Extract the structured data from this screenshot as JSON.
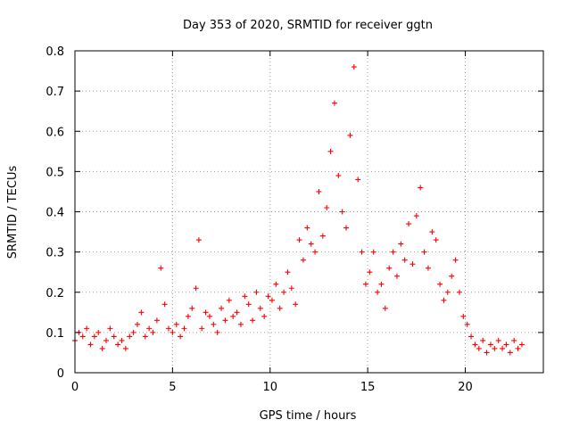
{
  "chart_data": {
    "type": "scatter",
    "title": "Day 353 of 2020, SRMTID for receiver ggtn",
    "xlabel": "GPS time / hours",
    "ylabel": "SRMTID / TECUs",
    "xlim": [
      0,
      24
    ],
    "ylim": [
      0,
      0.8
    ],
    "xticks": [
      0,
      5,
      10,
      15,
      20
    ],
    "xtick_labels": [
      "0",
      "5",
      "10",
      "15",
      "20"
    ],
    "yticks": [
      0,
      0.1,
      0.2,
      0.3,
      0.4,
      0.5,
      0.6,
      0.7,
      0.8
    ],
    "ytick_labels": [
      "0",
      "0.1",
      "0.2",
      "0.3",
      "0.4",
      "0.5",
      "0.6",
      "0.7",
      "0.8"
    ],
    "grid": true,
    "marker": "plus",
    "series": [
      {
        "name": "SRMTID",
        "color": "#ff0000",
        "x": [
          0.0,
          0.2,
          0.4,
          0.6,
          0.8,
          1.0,
          1.2,
          1.4,
          1.6,
          1.8,
          2.0,
          2.2,
          2.4,
          2.6,
          2.8,
          3.0,
          3.2,
          3.4,
          3.6,
          3.8,
          4.0,
          4.2,
          4.4,
          4.6,
          4.8,
          5.0,
          5.2,
          5.4,
          5.6,
          5.8,
          6.0,
          6.2,
          6.35,
          6.5,
          6.7,
          6.9,
          7.1,
          7.3,
          7.5,
          7.7,
          7.9,
          8.1,
          8.3,
          8.5,
          8.7,
          8.9,
          9.1,
          9.3,
          9.5,
          9.7,
          9.9,
          10.1,
          10.3,
          10.5,
          10.7,
          10.9,
          11.1,
          11.3,
          11.5,
          11.7,
          11.9,
          12.1,
          12.3,
          12.5,
          12.7,
          12.9,
          13.1,
          13.3,
          13.5,
          13.7,
          13.9,
          14.1,
          14.3,
          14.5,
          14.7,
          14.9,
          15.1,
          15.3,
          15.5,
          15.7,
          15.9,
          16.1,
          16.3,
          16.5,
          16.7,
          16.9,
          17.1,
          17.3,
          17.5,
          17.7,
          17.9,
          18.1,
          18.3,
          18.5,
          18.7,
          18.9,
          19.1,
          19.3,
          19.5,
          19.7,
          19.9,
          20.1,
          20.3,
          20.5,
          20.7,
          20.9,
          21.1,
          21.3,
          21.5,
          21.7,
          21.9,
          22.1,
          22.3,
          22.5,
          22.7,
          22.9
        ],
        "y": [
          0.08,
          0.1,
          0.09,
          0.11,
          0.07,
          0.09,
          0.1,
          0.06,
          0.08,
          0.11,
          0.09,
          0.07,
          0.08,
          0.06,
          0.09,
          0.1,
          0.12,
          0.15,
          0.09,
          0.11,
          0.1,
          0.13,
          0.26,
          0.17,
          0.11,
          0.1,
          0.12,
          0.09,
          0.11,
          0.14,
          0.16,
          0.21,
          0.33,
          0.11,
          0.15,
          0.14,
          0.12,
          0.1,
          0.16,
          0.13,
          0.18,
          0.14,
          0.15,
          0.12,
          0.19,
          0.17,
          0.13,
          0.2,
          0.16,
          0.14,
          0.19,
          0.18,
          0.22,
          0.16,
          0.2,
          0.25,
          0.21,
          0.17,
          0.33,
          0.28,
          0.36,
          0.32,
          0.3,
          0.45,
          0.34,
          0.41,
          0.55,
          0.67,
          0.49,
          0.4,
          0.36,
          0.59,
          0.76,
          0.48,
          0.3,
          0.22,
          0.25,
          0.3,
          0.2,
          0.22,
          0.16,
          0.26,
          0.3,
          0.24,
          0.32,
          0.28,
          0.37,
          0.27,
          0.39,
          0.46,
          0.3,
          0.26,
          0.35,
          0.33,
          0.22,
          0.18,
          0.2,
          0.24,
          0.28,
          0.2,
          0.14,
          0.12,
          0.09,
          0.07,
          0.06,
          0.08,
          0.05,
          0.07,
          0.06,
          0.08,
          0.06,
          0.07,
          0.05,
          0.08,
          0.06,
          0.07
        ]
      }
    ]
  }
}
